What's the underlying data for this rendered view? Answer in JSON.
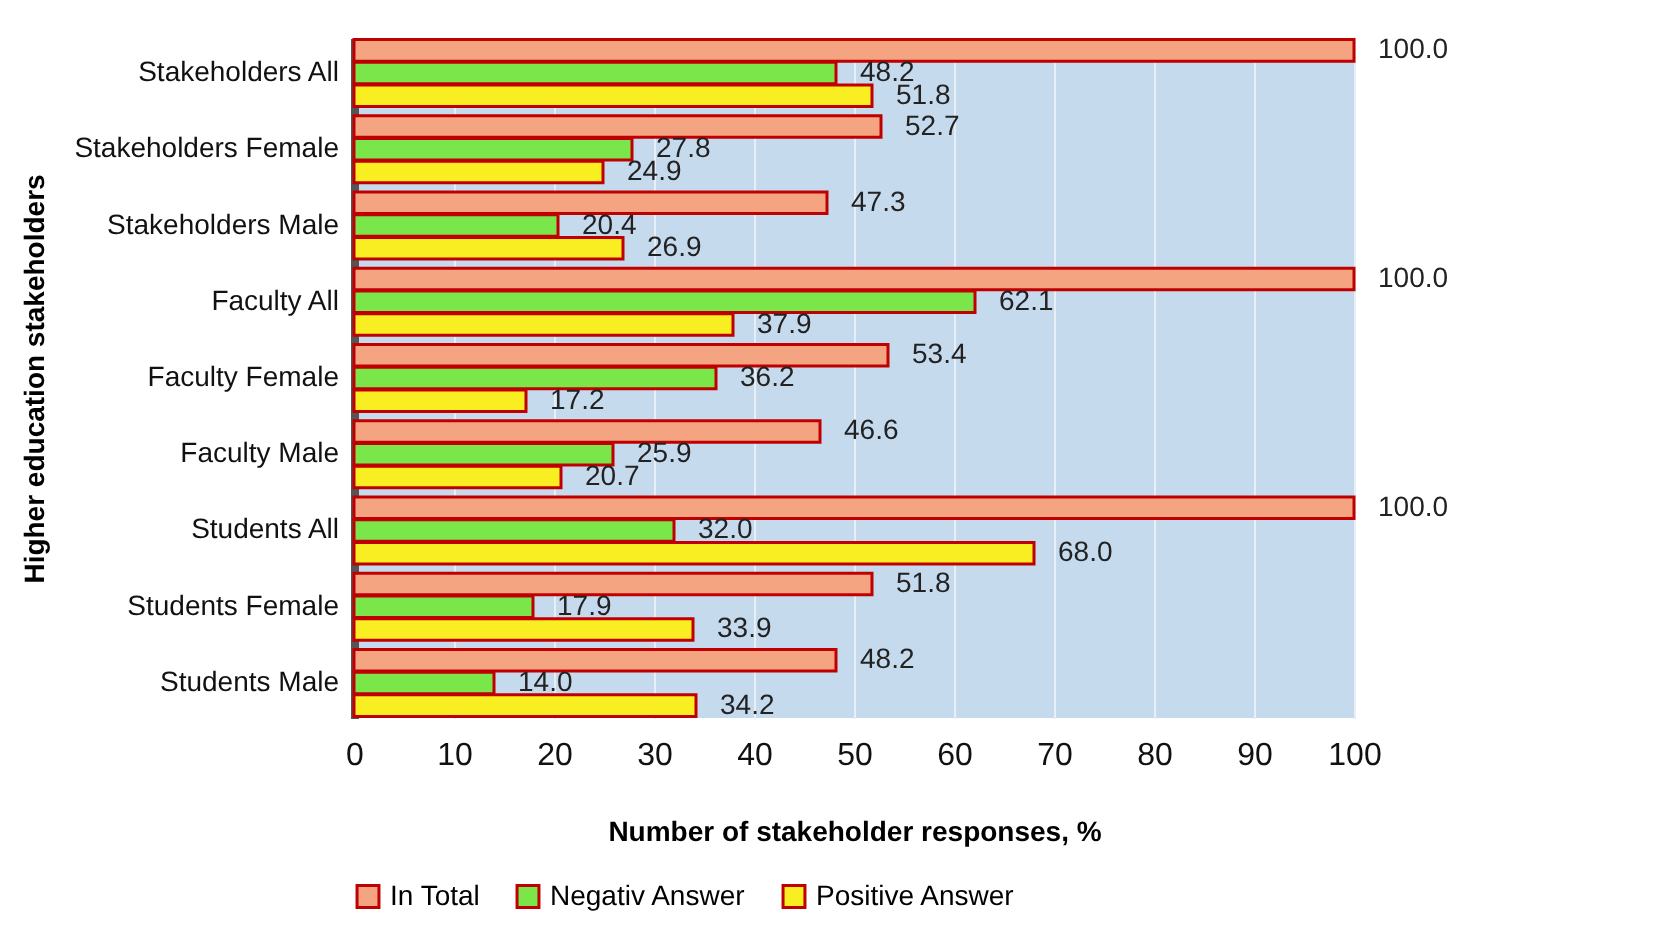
{
  "chart_data": {
    "type": "bar",
    "orientation": "horizontal",
    "xlabel": "Number of stakeholder responses, %",
    "ylabel": "Higher education stakeholders",
    "categories": [
      "Stakeholders All",
      "Stakeholders Female",
      "Stakeholders Male",
      "Faculty All",
      "Faculty Female",
      "Faculty Male",
      "Students All",
      "Students Female",
      "Students Male"
    ],
    "series": [
      {
        "name": "In Total",
        "color": "#f5a482",
        "values": [
          100.0,
          52.7,
          47.3,
          100.0,
          53.4,
          46.6,
          100.0,
          51.8,
          48.2
        ],
        "value_labels": [
          "100.0",
          "52.7",
          "47.3",
          "100.0",
          "53.4",
          "46.6",
          "100.0",
          "51.8",
          "48.2"
        ]
      },
      {
        "name": "Negativ Answer",
        "color": "#7ae64a",
        "values": [
          48.2,
          27.8,
          20.4,
          62.1,
          36.2,
          25.9,
          32.0,
          17.9,
          14.0
        ],
        "value_labels": [
          "48.2",
          "27.8",
          "20.4",
          "62.1",
          "36.2",
          "25.9",
          "32.0",
          "17.9",
          "14.0"
        ]
      },
      {
        "name": "Positive Answer",
        "color": "#f8ee22",
        "values": [
          51.8,
          24.9,
          26.9,
          37.9,
          17.2,
          20.7,
          68.0,
          33.9,
          34.2
        ],
        "value_labels": [
          "51.8",
          "24.9",
          "26.9",
          "37.9",
          "17.2",
          "20.7",
          "68.0",
          "33.9",
          "34.2"
        ]
      }
    ],
    "xlim": [
      0,
      100
    ],
    "xticks": [
      0,
      10,
      20,
      30,
      40,
      50,
      60,
      70,
      80,
      90,
      100
    ],
    "grid": "x",
    "legend": "bottom"
  }
}
